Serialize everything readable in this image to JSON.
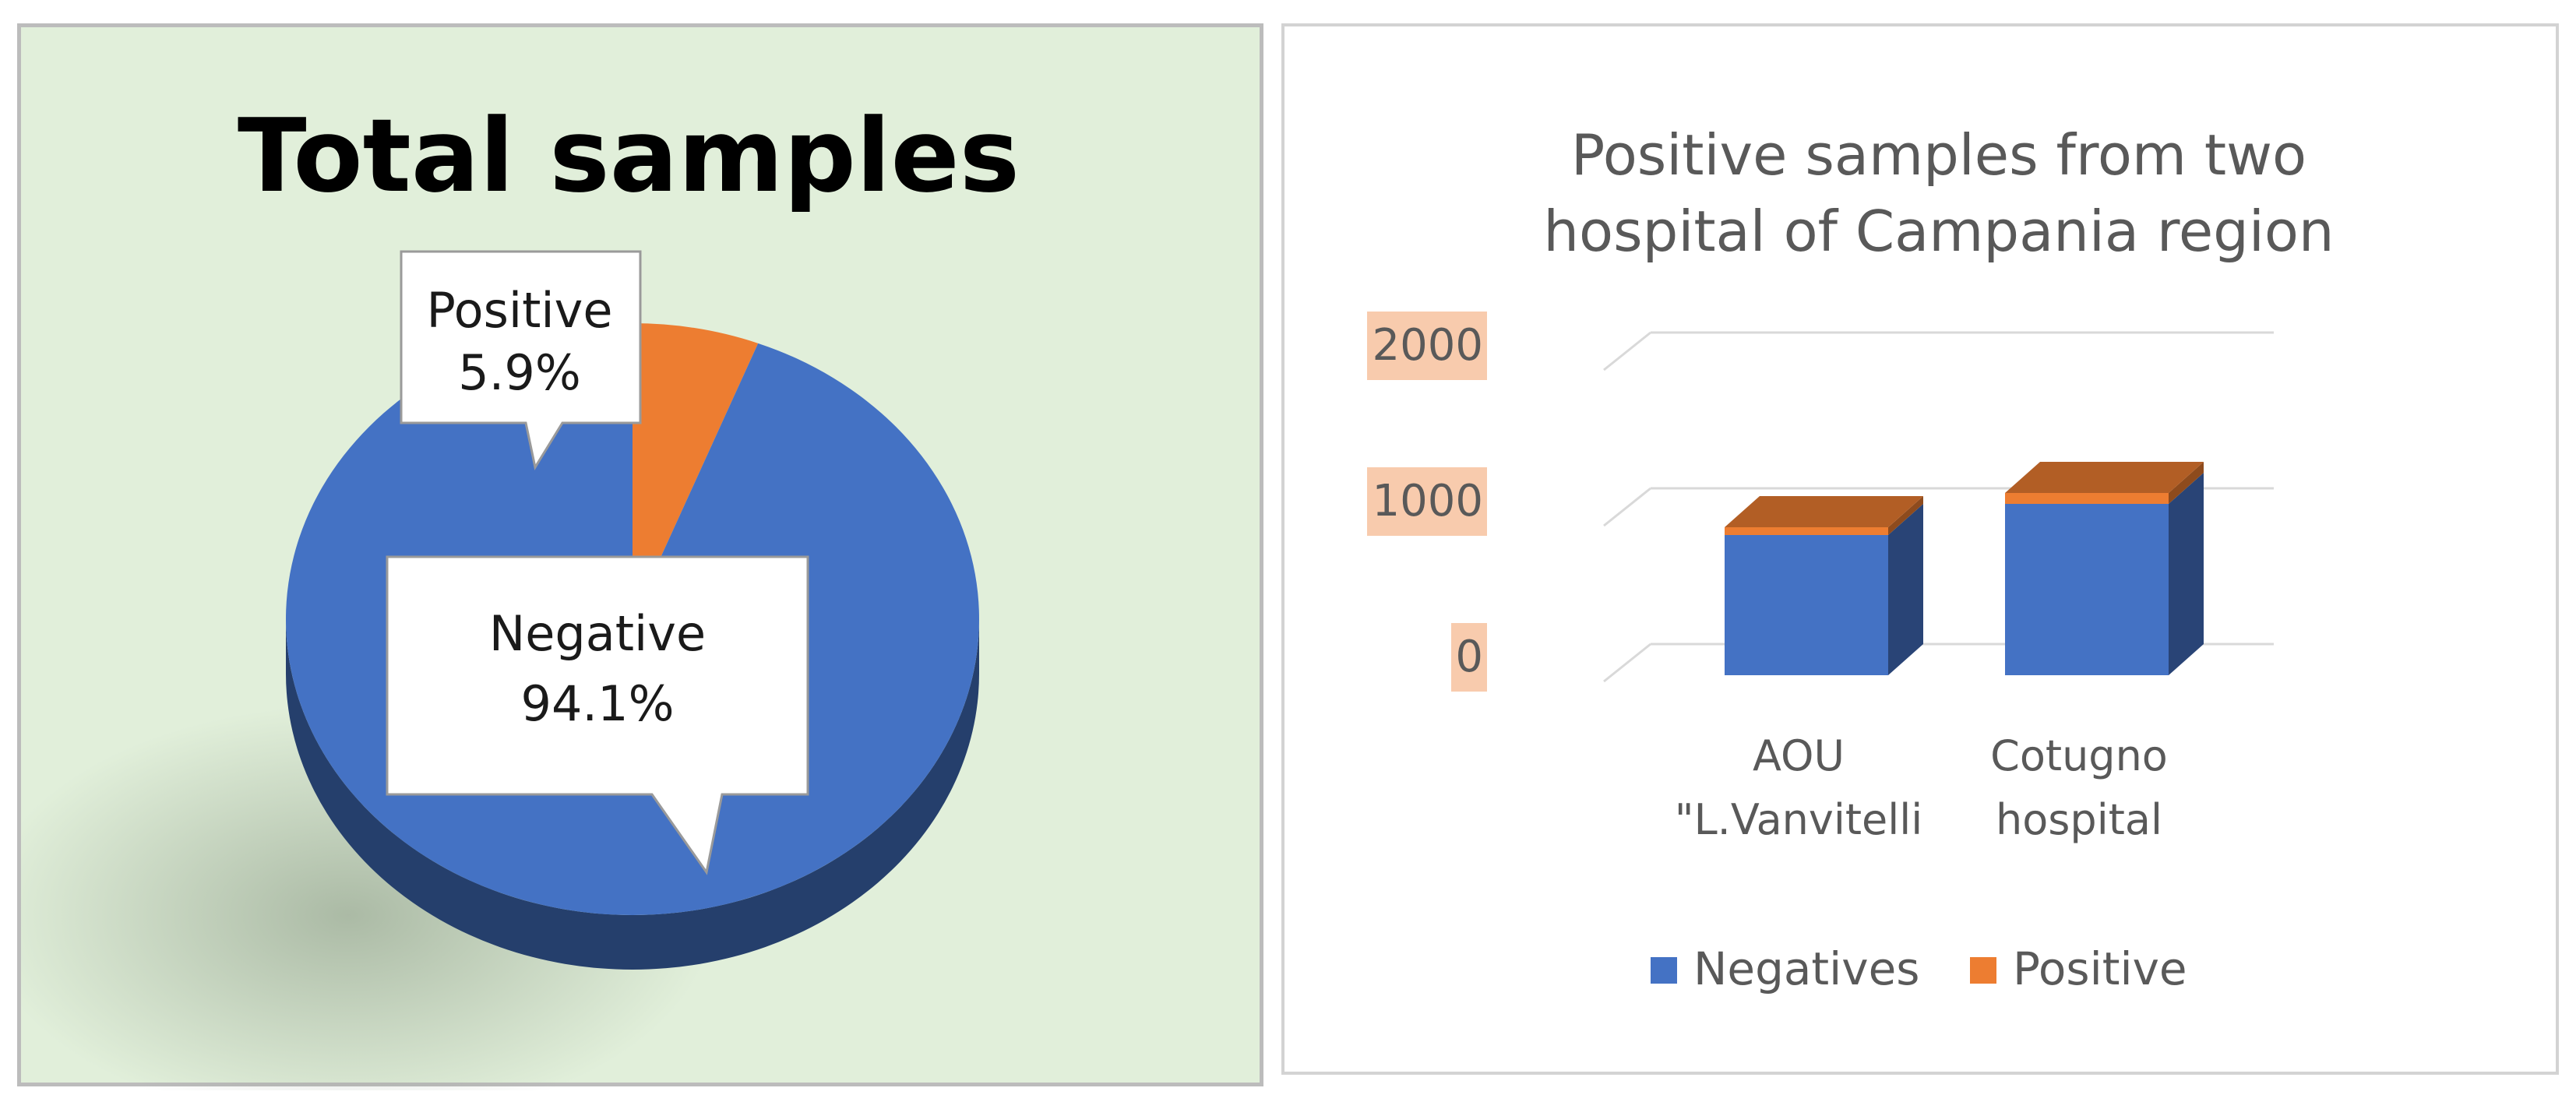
{
  "chart_data": [
    {
      "type": "pie",
      "title": "Total samples",
      "slices": [
        {
          "label": "Positive",
          "value": 5.9,
          "display": "5.9%",
          "color": "#ed7d31"
        },
        {
          "label": "Negative",
          "value": 94.1,
          "display": "94.1%",
          "color": "#4472c4"
        }
      ],
      "background": "#e1efda"
    },
    {
      "type": "bar",
      "stacked": true,
      "title": "Positive samples from two hospital of Campania region",
      "title_lines": [
        "Positive samples from two",
        "hospital of Campania region"
      ],
      "categories": [
        {
          "lines": [
            "AOU",
            "\"L.Vanvitelli"
          ]
        },
        {
          "lines": [
            "Cotugno",
            "hospital"
          ]
        }
      ],
      "series": [
        {
          "name": "Negatives",
          "values": [
            900,
            1100
          ],
          "color": "#4472c4"
        },
        {
          "name": "Positive",
          "values": [
            50,
            70
          ],
          "color": "#ed7d31"
        }
      ],
      "yticks": [
        "2000",
        "1000",
        "0"
      ],
      "ylim": [
        0,
        2000
      ],
      "legend": "bottom"
    }
  ]
}
